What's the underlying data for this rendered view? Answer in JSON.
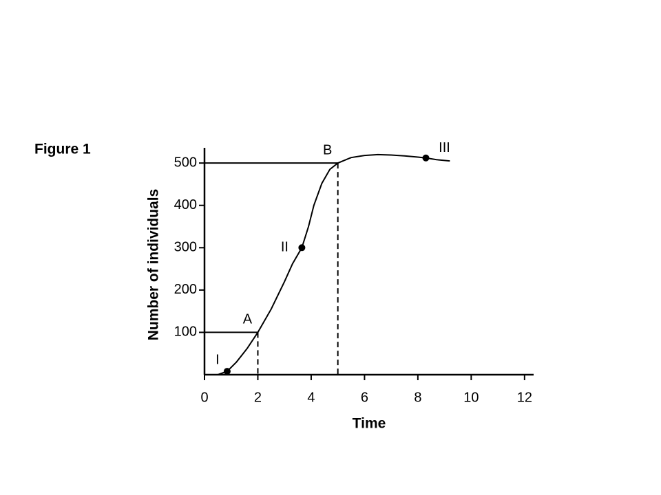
{
  "chart_data": {
    "type": "line",
    "title": "Figure 1",
    "x_label": "Time",
    "y_label": "Number of individuals",
    "xlim": [
      0,
      12.34
    ],
    "ylim": [
      0,
      536
    ],
    "xticks": [
      0,
      2,
      4,
      6,
      8,
      10,
      12
    ],
    "yticks": [
      100,
      200,
      300,
      400,
      500
    ],
    "color": "#000000",
    "x": [
      0.5,
      0.85,
      1.2,
      1.6,
      2,
      2.5,
      3,
      3.3,
      3.65,
      3.9,
      4.1,
      4.4,
      4.7,
      5,
      5.5,
      6,
      6.5,
      7,
      7.5,
      8,
      8.3,
      8.7,
      9.2
    ],
    "series": [
      {
        "values": [
          0,
          8,
          30,
          62,
          100,
          155,
          220,
          262,
          300,
          350,
          400,
          452,
          485,
          500,
          513,
          518,
          520,
          519,
          517,
          514,
          512,
          508,
          505
        ]
      }
    ],
    "markers": [
      {
        "label": "I",
        "x": 0.85,
        "y": 8
      },
      {
        "label": "II",
        "x": 3.65,
        "y": 300
      },
      {
        "label": "III",
        "x": 8.3,
        "y": 512
      }
    ],
    "guides": [
      {
        "label": "A",
        "x": 2,
        "y": 100
      },
      {
        "label": "B",
        "x": 5,
        "y": 500
      }
    ]
  }
}
